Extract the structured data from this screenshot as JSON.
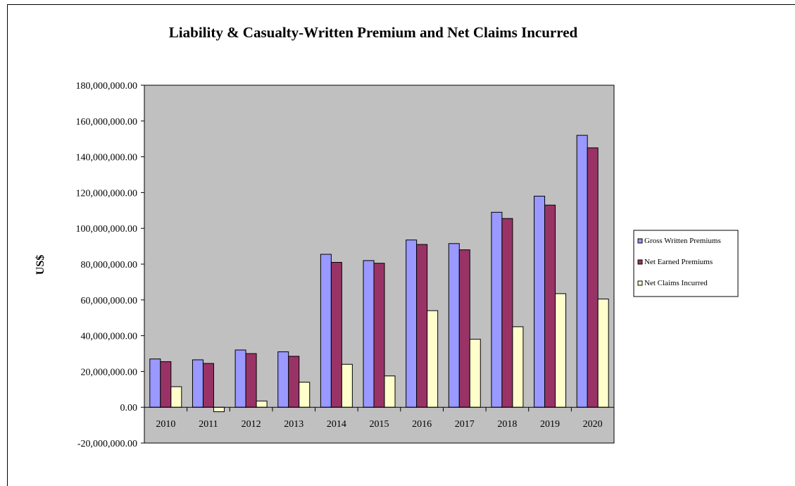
{
  "chart_data": {
    "type": "bar",
    "title": "Liability & Casualty-Written Premium and Net Claims Incurred",
    "xlabel": "",
    "ylabel": "US$",
    "categories": [
      "2010",
      "2011",
      "2012",
      "2013",
      "2014",
      "2015",
      "2016",
      "2017",
      "2018",
      "2019",
      "2020"
    ],
    "series": [
      {
        "name": "Gross Written Premiums",
        "color": "#9999FF",
        "values": [
          27000000,
          26500000,
          32000000,
          31000000,
          85500000,
          82000000,
          93500000,
          91500000,
          109000000,
          118000000,
          152000000
        ]
      },
      {
        "name": "Net Earned Premiums",
        "color": "#993366",
        "values": [
          25500000,
          24500000,
          30000000,
          28500000,
          81000000,
          80500000,
          91000000,
          88000000,
          105500000,
          113000000,
          145000000
        ]
      },
      {
        "name": "Net Claims Incurred",
        "color": "#FFFFCC",
        "values": [
          11500000,
          -2500000,
          3500000,
          14000000,
          24000000,
          17500000,
          54000000,
          38000000,
          45000000,
          63500000,
          60500000
        ]
      }
    ],
    "ylim": [
      -20000000,
      180000000
    ],
    "yticks": [
      -20000000,
      0,
      20000000,
      40000000,
      60000000,
      80000000,
      100000000,
      120000000,
      140000000,
      160000000,
      180000000
    ],
    "ytick_labels": [
      "-20,000,000.00",
      "0.00",
      "20,000,000.00",
      "40,000,000.00",
      "60,000,000.00",
      "80,000,000.00",
      "100,000,000.00",
      "120,000,000.00",
      "140,000,000.00",
      "160,000,000.00",
      "180,000,000.00"
    ],
    "plot_background": "#C0C0C0",
    "grid": false,
    "legend_position": "right"
  }
}
